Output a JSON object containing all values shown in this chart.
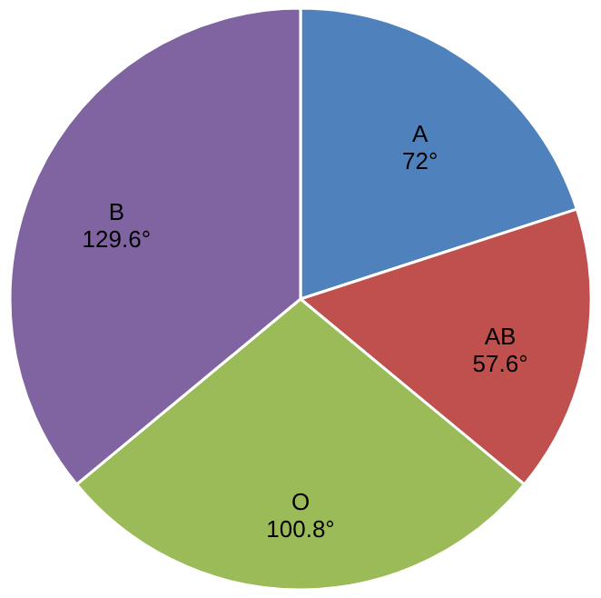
{
  "chart_data": {
    "type": "pie",
    "categories": [
      "A",
      "AB",
      "O",
      "B"
    ],
    "values": [
      72,
      57.6,
      100.8,
      129.6
    ],
    "value_labels": [
      "72°",
      "57.6°",
      "100.8°",
      "129.6°"
    ],
    "colors": [
      "#4f81bd",
      "#c0504d",
      "#9bbb59",
      "#8064a2"
    ],
    "legend": false
  }
}
